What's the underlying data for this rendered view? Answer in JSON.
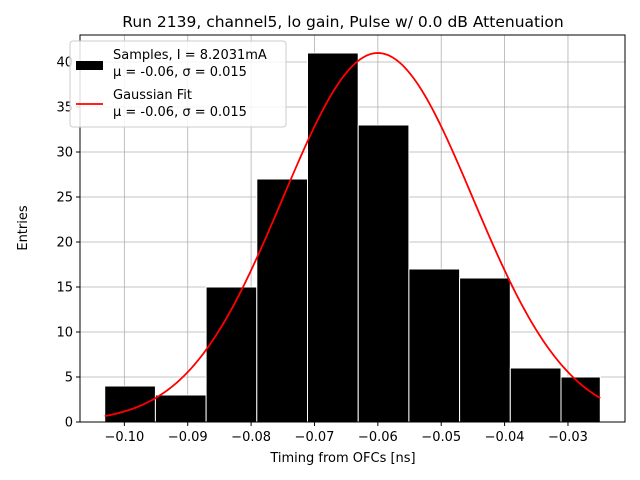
{
  "chart_data": {
    "type": "bar",
    "title": "Run 2139, channel5, lo gain, Pulse w/ 0.0 dB Attenuation",
    "xlabel": "Timing from OFCs [ns]",
    "ylabel": "Entries",
    "xlim": [
      -0.107,
      -0.021
    ],
    "ylim": [
      0,
      43
    ],
    "grid": true,
    "xticks": [
      -0.1,
      -0.09,
      -0.08,
      -0.07,
      -0.06,
      -0.05,
      -0.04,
      -0.03
    ],
    "xtick_labels": [
      "−0.10",
      "−0.09",
      "−0.08",
      "−0.07",
      "−0.06",
      "−0.05",
      "−0.04",
      "−0.03"
    ],
    "yticks": [
      0,
      5,
      10,
      15,
      20,
      25,
      30,
      35,
      40
    ],
    "ytick_labels": [
      "0",
      "5",
      "10",
      "15",
      "20",
      "25",
      "30",
      "35",
      "40"
    ],
    "histogram": {
      "name": "Samples, I = 8.2031mA",
      "stats": "μ = -0.06, σ = 0.015",
      "color": "#000000",
      "edge_color": "#ffffff",
      "bin_edges": [
        -0.1031,
        -0.0951,
        -0.0871,
        -0.0791,
        -0.0711,
        -0.0631,
        -0.0551,
        -0.0471,
        -0.0391,
        -0.0311,
        -0.0249
      ],
      "values": [
        4,
        3,
        15,
        27,
        41,
        33,
        17,
        16,
        6,
        5
      ]
    },
    "fit": {
      "name": "Gaussian Fit",
      "stats": "μ = -0.06, σ = 0.015",
      "color": "#ff0000",
      "amplitude": 41,
      "mean": -0.06,
      "sigma": 0.015,
      "x_range": [
        -0.1031,
        -0.0249
      ]
    },
    "legend_position": "upper-left"
  }
}
